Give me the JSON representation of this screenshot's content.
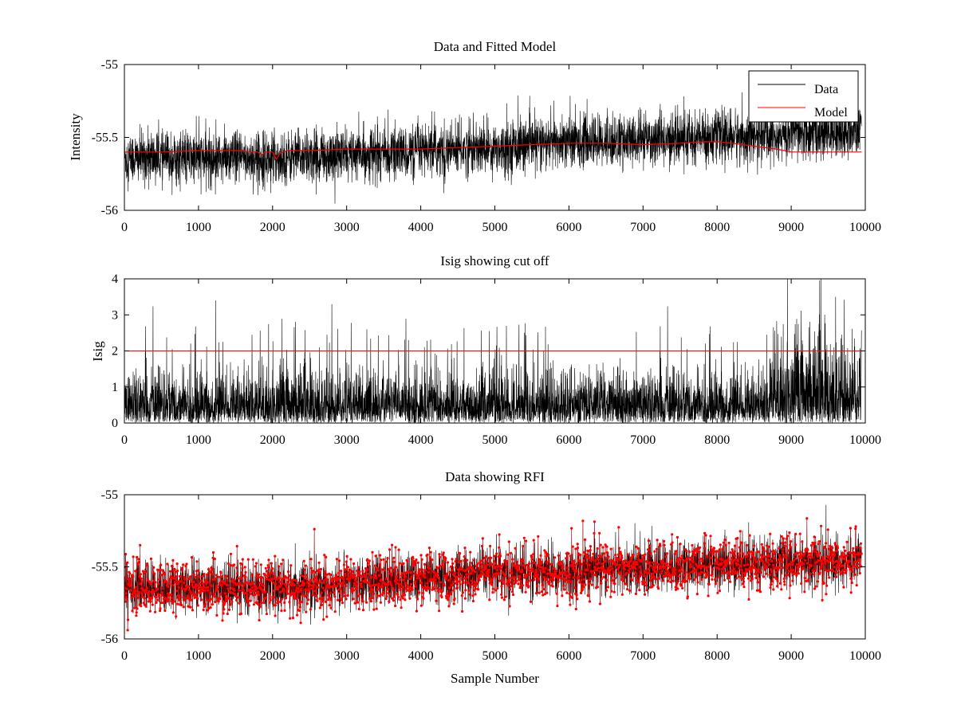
{
  "chart_data": [
    {
      "type": "line",
      "title": "Data and Fitted Model",
      "xlabel": "",
      "ylabel": "Intensity",
      "xlim": [
        0,
        10000
      ],
      "ylim": [
        -56,
        -55
      ],
      "xticks": [
        "0",
        "1000",
        "2000",
        "3000",
        "4000",
        "5000",
        "6000",
        "7000",
        "8000",
        "9000",
        "10000"
      ],
      "yticks": [
        "-55",
        "-55.5",
        "-56"
      ],
      "ytick_values": [
        -55,
        -55.5,
        -56
      ],
      "legend_position": "top-right",
      "series": [
        {
          "name": "Data",
          "color": "#000000",
          "description_samples": 9950,
          "trend_x": [
            0,
            2000,
            3000,
            4000,
            5000,
            6000,
            7000,
            8000,
            9000,
            9950
          ],
          "trend_y": [
            -55.64,
            -55.64,
            -55.62,
            -55.6,
            -55.57,
            -55.53,
            -55.52,
            -55.5,
            -55.48,
            -55.46
          ],
          "noise_amplitude": 0.16
        },
        {
          "name": "Model",
          "color": "#ff0000",
          "x": [
            0,
            500,
            1000,
            1500,
            1800,
            1850,
            1900,
            2000,
            2050,
            2100,
            2200,
            2500,
            3000,
            3500,
            4000,
            4500,
            5000,
            5500,
            6000,
            6500,
            7000,
            7500,
            7800,
            8000,
            8200,
            8500,
            8800,
            9000,
            9500,
            9950
          ],
          "y": [
            -55.6,
            -55.6,
            -55.59,
            -55.59,
            -55.6,
            -55.62,
            -55.6,
            -55.6,
            -55.65,
            -55.61,
            -55.59,
            -55.59,
            -55.58,
            -55.58,
            -55.58,
            -55.57,
            -55.56,
            -55.55,
            -55.54,
            -55.54,
            -55.55,
            -55.54,
            -55.53,
            -55.53,
            -55.54,
            -55.56,
            -55.58,
            -55.6,
            -55.6,
            -55.6
          ]
        }
      ]
    },
    {
      "type": "line",
      "title": "Isig showing cut off",
      "xlabel": "",
      "ylabel": "Isig",
      "xlim": [
        0,
        10000
      ],
      "ylim": [
        0,
        4
      ],
      "xticks": [
        "0",
        "1000",
        "2000",
        "3000",
        "4000",
        "5000",
        "6000",
        "7000",
        "8000",
        "9000",
        "10000"
      ],
      "yticks": [
        "0",
        "1",
        "2",
        "3",
        "4"
      ],
      "ytick_values": [
        0,
        1,
        2,
        3,
        4
      ],
      "series": [
        {
          "name": "Isig",
          "color": "#000000",
          "typical_max": 2.4,
          "peaks": [
            [
              1230,
              3.4
            ],
            [
              2800,
              3.3
            ],
            [
              8950,
              4.0
            ],
            [
              9400,
              4.0
            ],
            [
              9600,
              3.5
            ]
          ]
        },
        {
          "name": "Cut off",
          "color": "#ff0000",
          "y": 2
        }
      ]
    },
    {
      "type": "line",
      "title": "Data showing RFI",
      "xlabel": "Sample Number",
      "ylabel": "",
      "xlim": [
        0,
        10000
      ],
      "ylim": [
        -56,
        -55
      ],
      "xticks": [
        "0",
        "1000",
        "2000",
        "3000",
        "4000",
        "5000",
        "6000",
        "7000",
        "8000",
        "9000",
        "10000"
      ],
      "yticks": [
        "-55",
        "-55.5",
        "-56"
      ],
      "ytick_values": [
        -55,
        -55.5,
        -56
      ],
      "series": [
        {
          "name": "Data",
          "color": "#000000",
          "trend_x": [
            0,
            2000,
            3000,
            4000,
            5000,
            6000,
            7000,
            8000,
            9000,
            9950
          ],
          "trend_y": [
            -55.64,
            -55.65,
            -55.62,
            -55.58,
            -55.55,
            -55.53,
            -55.51,
            -55.49,
            -55.47,
            -55.46
          ],
          "noise_amplitude": 0.16
        },
        {
          "name": "RFI",
          "color": "#ff0000",
          "marker": "dot"
        }
      ]
    }
  ]
}
